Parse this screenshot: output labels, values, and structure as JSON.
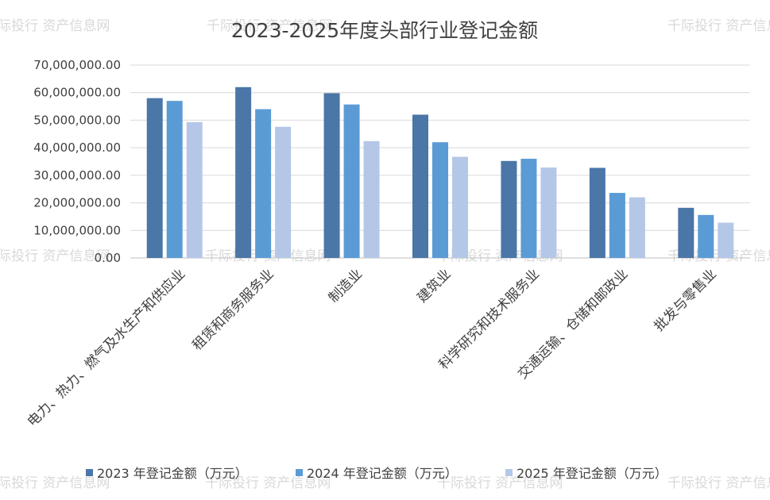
{
  "watermark_text": "千际投行 资产信息网",
  "chart_data": {
    "type": "bar",
    "title": "2023-2025年度头部行业登记金额",
    "categories": [
      "电力、热力、燃气及水生产和供应业",
      "租赁和商务服务业",
      "制造业",
      "建筑业",
      "科学研究和技术服务业",
      "交通运输、仓储和邮政业",
      "批发与零售业"
    ],
    "series": [
      {
        "name": "2023 年登记金额（万元）",
        "color": "#4a76a8",
        "values": [
          58000000,
          62000000,
          59800000,
          52000000,
          35200000,
          32700000,
          18200000
        ]
      },
      {
        "name": "2024 年登记金额（万元）",
        "color": "#5b9bd5",
        "values": [
          57000000,
          54000000,
          55700000,
          42000000,
          36000000,
          23600000,
          15600000
        ]
      },
      {
        "name": "2025 年登记金额（万元）",
        "color": "#b4c7e7",
        "values": [
          49300000,
          47600000,
          42400000,
          36700000,
          32800000,
          22000000,
          12800000
        ]
      }
    ],
    "yticks": [
      "0.00",
      "10,000,000.00",
      "20,000,000.00",
      "30,000,000.00",
      "40,000,000.00",
      "50,000,000.00",
      "60,000,000.00",
      "70,000,000.00"
    ],
    "ylim": [
      0,
      70000000
    ],
    "grid": true,
    "legend_position": "bottom"
  }
}
